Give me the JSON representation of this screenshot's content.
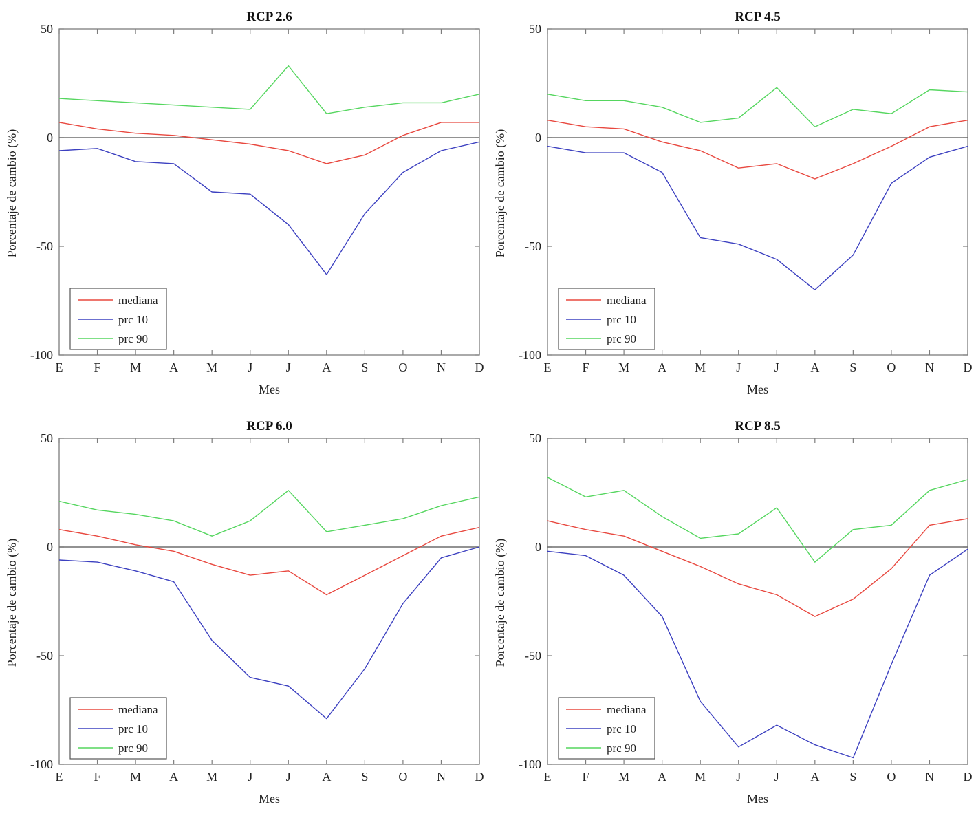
{
  "page": {
    "background": "#ffffff"
  },
  "colors": {
    "mediana": "#e8483f",
    "prc10": "#3c40c0",
    "prc90": "#55d65f",
    "zero_line": "#6e6e6e",
    "axis": "#7d7d7d",
    "text": "#222222"
  },
  "legend": {
    "entries": [
      {
        "label": "mediana",
        "color_key": "mediana"
      },
      {
        "label": "prc 10",
        "color_key": "prc10"
      },
      {
        "label": "prc 90",
        "color_key": "prc90"
      }
    ],
    "position": "lower-left"
  },
  "chart_data": [
    {
      "type": "line",
      "title": "RCP 2.6",
      "xlabel": "Mes",
      "ylabel": "Porcentaje de cambio (%)",
      "categories": [
        "E",
        "F",
        "M",
        "A",
        "M",
        "J",
        "J",
        "A",
        "S",
        "O",
        "N",
        "D"
      ],
      "yticks": [
        50,
        0,
        -50,
        -100
      ],
      "ylim": [
        -100,
        50
      ],
      "grid": false,
      "zero_line": true,
      "legend_position": "lower-left",
      "series": [
        {
          "name": "mediana",
          "color": "#e8483f",
          "values": [
            7,
            4,
            2,
            1,
            -1,
            -3,
            -6,
            -12,
            -8,
            1,
            7,
            7
          ]
        },
        {
          "name": "prc 10",
          "color": "#3c40c0",
          "values": [
            -6,
            -5,
            -11,
            -12,
            -25,
            -26,
            -40,
            -63,
            -35,
            -16,
            -6,
            -2
          ]
        },
        {
          "name": "prc 90",
          "color": "#55d65f",
          "values": [
            18,
            17,
            16,
            15,
            14,
            13,
            33,
            11,
            14,
            16,
            16,
            20
          ]
        }
      ]
    },
    {
      "type": "line",
      "title": "RCP 4.5",
      "xlabel": "Mes",
      "ylabel": "Porcentaje de cambio (%)",
      "categories": [
        "E",
        "F",
        "M",
        "A",
        "M",
        "J",
        "J",
        "A",
        "S",
        "O",
        "N",
        "D"
      ],
      "yticks": [
        50,
        0,
        -50,
        -100
      ],
      "ylim": [
        -100,
        50
      ],
      "grid": false,
      "zero_line": true,
      "legend_position": "lower-left",
      "series": [
        {
          "name": "mediana",
          "color": "#e8483f",
          "values": [
            8,
            5,
            4,
            -2,
            -6,
            -14,
            -12,
            -19,
            -12,
            -4,
            5,
            8
          ]
        },
        {
          "name": "prc 10",
          "color": "#3c40c0",
          "values": [
            -4,
            -7,
            -7,
            -16,
            -46,
            -49,
            -56,
            -70,
            -54,
            -21,
            -9,
            -4
          ]
        },
        {
          "name": "prc 90",
          "color": "#55d65f",
          "values": [
            20,
            17,
            17,
            14,
            7,
            9,
            23,
            5,
            13,
            11,
            22,
            21
          ]
        }
      ]
    },
    {
      "type": "line",
      "title": "RCP 6.0",
      "xlabel": "Mes",
      "ylabel": "Porcentaje de cambio (%)",
      "categories": [
        "E",
        "F",
        "M",
        "A",
        "M",
        "J",
        "J",
        "A",
        "S",
        "O",
        "N",
        "D"
      ],
      "yticks": [
        50,
        0,
        -50,
        -100
      ],
      "ylim": [
        -100,
        50
      ],
      "grid": false,
      "zero_line": true,
      "legend_position": "lower-left",
      "series": [
        {
          "name": "mediana",
          "color": "#e8483f",
          "values": [
            8,
            5,
            1,
            -2,
            -8,
            -13,
            -11,
            -22,
            -13,
            -4,
            5,
            9
          ]
        },
        {
          "name": "prc 10",
          "color": "#3c40c0",
          "values": [
            -6,
            -7,
            -11,
            -16,
            -43,
            -60,
            -64,
            -79,
            -56,
            -26,
            -5,
            0
          ]
        },
        {
          "name": "prc 90",
          "color": "#55d65f",
          "values": [
            21,
            17,
            15,
            12,
            5,
            12,
            26,
            7,
            10,
            13,
            19,
            23
          ]
        }
      ]
    },
    {
      "type": "line",
      "title": "RCP 8.5",
      "xlabel": "Mes",
      "ylabel": "Porcentaje de cambio (%)",
      "categories": [
        "E",
        "F",
        "M",
        "A",
        "M",
        "J",
        "J",
        "A",
        "S",
        "O",
        "N",
        "D"
      ],
      "yticks": [
        50,
        0,
        -50,
        -100
      ],
      "ylim": [
        -100,
        50
      ],
      "grid": false,
      "zero_line": true,
      "legend_position": "lower-left",
      "series": [
        {
          "name": "mediana",
          "color": "#e8483f",
          "values": [
            12,
            8,
            5,
            -2,
            -9,
            -17,
            -22,
            -32,
            -24,
            -10,
            10,
            13
          ]
        },
        {
          "name": "prc 10",
          "color": "#3c40c0",
          "values": [
            -2,
            -4,
            -13,
            -32,
            -71,
            -92,
            -82,
            -91,
            -97,
            -54,
            -13,
            -1
          ]
        },
        {
          "name": "prc 90",
          "color": "#55d65f",
          "values": [
            32,
            23,
            26,
            14,
            4,
            6,
            18,
            -7,
            8,
            10,
            26,
            31
          ]
        }
      ]
    }
  ]
}
